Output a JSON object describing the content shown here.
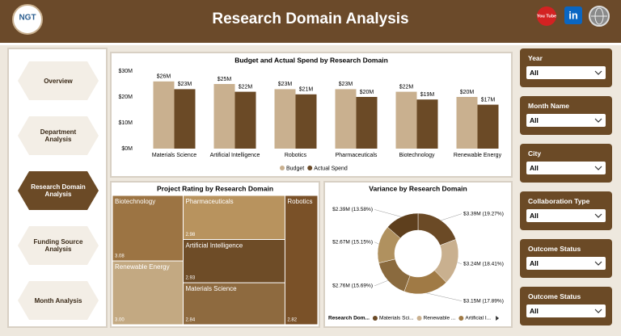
{
  "header": {
    "logo": "NGT",
    "title": "Research Domain Analysis",
    "social": [
      "You Tube",
      "in"
    ]
  },
  "nav": {
    "items": [
      "Overview",
      "Department Analysis",
      "Research Domain Analysis",
      "Funding Source Analysis",
      "Month Analysis"
    ],
    "active": 2
  },
  "filters": [
    {
      "label": "Year",
      "value": "All"
    },
    {
      "label": "Month Name",
      "value": "All"
    },
    {
      "label": "City",
      "value": "All"
    },
    {
      "label": "Collaboration Type",
      "value": "All"
    },
    {
      "label": "Outcome Status",
      "value": "All"
    },
    {
      "label": "Outcome Status",
      "value": "All"
    }
  ],
  "chart_data": [
    {
      "type": "bar",
      "title": "Budget and Actual Spend by Research Domain",
      "categories": [
        "Materials Science",
        "Artificial Intelligence",
        "Robotics",
        "Pharmaceuticals",
        "Biotechnology",
        "Renewable Energy"
      ],
      "series": [
        {
          "name": "Budget",
          "color": "#c9b08f",
          "values": [
            26,
            25,
            23,
            23,
            22,
            20
          ],
          "value_labels": [
            "$26M",
            "$25M",
            "$23M",
            "$23M",
            "$22M",
            "$20M"
          ]
        },
        {
          "name": "Actual Spend",
          "color": "#6b4a26",
          "values": [
            23,
            22,
            21,
            20,
            19,
            17
          ],
          "value_labels": [
            "$23M",
            "$22M",
            "$21M",
            "$20M",
            "$19M",
            "$17M"
          ]
        }
      ],
      "ylim": [
        0,
        30
      ],
      "yticks": [
        {
          "value": 0,
          "label": "$0M"
        },
        {
          "value": 10,
          "label": "$10M"
        },
        {
          "value": 20,
          "label": "$20M"
        },
        {
          "value": 30,
          "label": "$30M"
        }
      ],
      "grid": false
    },
    {
      "type": "treemap",
      "title": "Project Rating by Research Domain",
      "categories": [
        "Biotechnology",
        "Pharmaceuticals",
        "Robotics",
        "Artificial Intelligence",
        "Renewable Energy",
        "Materials Science"
      ],
      "values": [
        3.08,
        2.98,
        2.82,
        2.93,
        3.0,
        2.84
      ],
      "value_labels": [
        "3.08",
        "2.98",
        "2.82",
        "2.93",
        "3.00",
        "2.84"
      ],
      "colors": [
        "#9c7443",
        "#b8935e",
        "#7a5128",
        "#6e4c27",
        "#c3a982",
        "#8e6a3f"
      ]
    },
    {
      "type": "donut",
      "title": "Variance by Research Domain",
      "legend_title": "Research Dom...",
      "categories": [
        "Materials Sci...",
        "Renewable ...",
        "Artificial I...",
        null,
        null,
        null
      ],
      "values": [
        3.39,
        3.24,
        3.15,
        2.76,
        2.67,
        2.39
      ],
      "value_labels": [
        "$3.39M (19.27%)",
        "$3.24M (18.41%)",
        "$3.15M (17.89%)",
        "$2.76M (15.69%)",
        "$2.67M (15.15%)",
        "$2.39M (13.58%)"
      ],
      "colors": [
        "#6b4a26",
        "#c9b08f",
        "#a07a45",
        "#8a6a3e",
        "#b0915f",
        "#5e3f1d"
      ]
    }
  ]
}
